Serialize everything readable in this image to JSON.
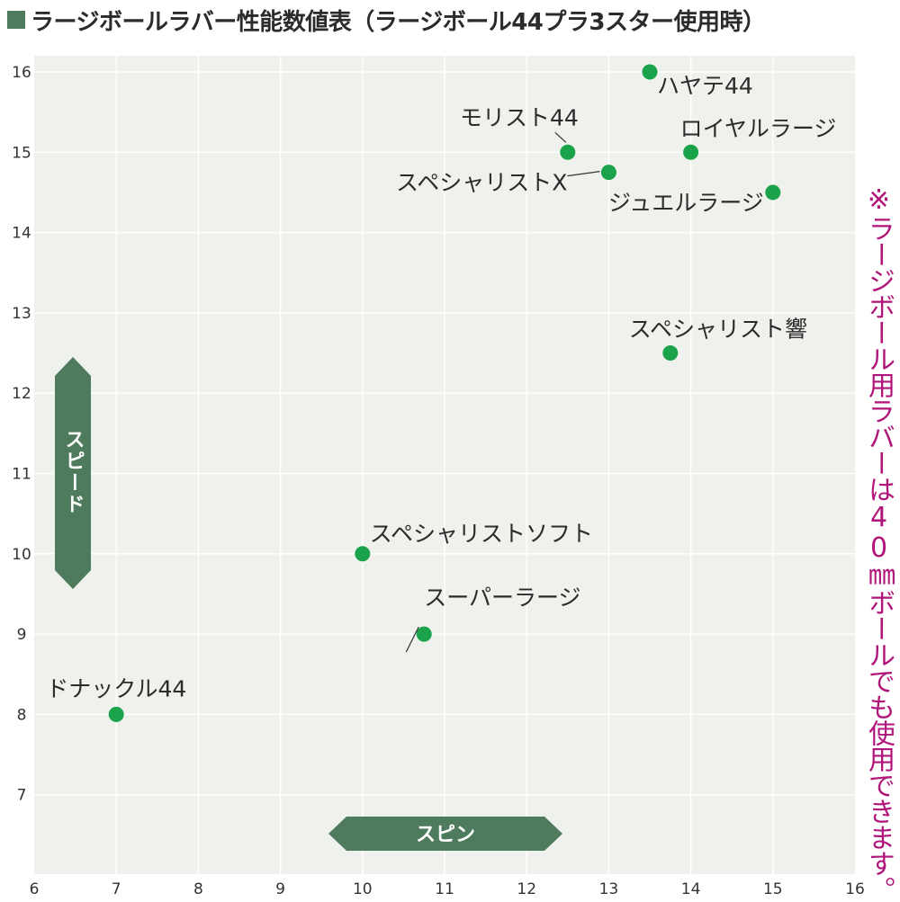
{
  "title": "ラージボールラバー性能数値表（ラージボール44プラ3スター使用時）",
  "note": "※ラージボール用ラバーは40㎜ボールでも使用できます。",
  "colors": {
    "title_square": "#4e7b5d",
    "plot_bg": "#eef1ec",
    "grid": "#ffffff",
    "point": "#1aa34a",
    "axis_badge": "#4e7b5d",
    "note": "#b0157a"
  },
  "chart_data": {
    "type": "scatter",
    "title": "ラージボールラバー性能数値表（ラージボール44プラ3スター使用時）",
    "xlabel": "スピン",
    "ylabel": "スピード",
    "xlim": [
      6,
      16
    ],
    "ylim": [
      6,
      16
    ],
    "x_ticks": [
      6,
      7,
      8,
      9,
      10,
      11,
      12,
      13,
      14,
      15,
      16
    ],
    "y_ticks": [
      7,
      8,
      9,
      10,
      11,
      12,
      13,
      14,
      15,
      16
    ],
    "grid": true,
    "points": [
      {
        "label": "ハヤテ44",
        "x": 13.5,
        "y": 16
      },
      {
        "label": "モリスト44",
        "x": 12.5,
        "y": 15
      },
      {
        "label": "ロイヤルラージ",
        "x": 14,
        "y": 15
      },
      {
        "label": "スペシャリストX",
        "x": 13,
        "y": 14.75
      },
      {
        "label": "ジュエルラージ",
        "x": 15,
        "y": 14.5
      },
      {
        "label": "スペシャリスト響",
        "x": 13.75,
        "y": 12.5
      },
      {
        "label": "スペシャリストソフト",
        "x": 10,
        "y": 10
      },
      {
        "label": "スーパーラージ",
        "x": 10.75,
        "y": 9
      },
      {
        "label": "ドナックル44",
        "x": 7,
        "y": 8
      }
    ]
  }
}
